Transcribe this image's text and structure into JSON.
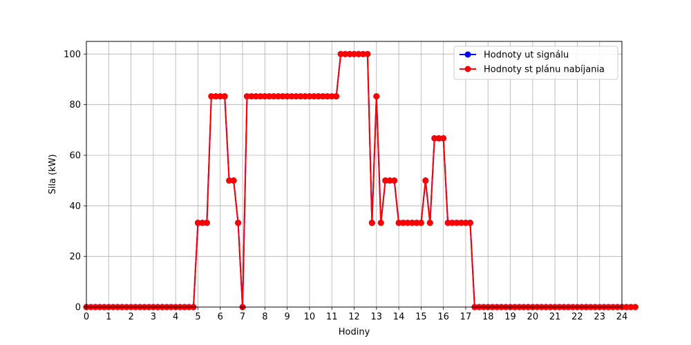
{
  "chart_data": {
    "type": "line",
    "title": "",
    "xlabel": "Hodiny",
    "ylabel": "Sila (kW)",
    "xlim": [
      0,
      24
    ],
    "ylim": [
      0,
      105
    ],
    "x_ticks": [
      0,
      1,
      2,
      3,
      4,
      5,
      6,
      7,
      8,
      9,
      10,
      11,
      12,
      13,
      14,
      15,
      16,
      17,
      18,
      19,
      20,
      21,
      22,
      23,
      24
    ],
    "y_ticks": [
      0,
      20,
      40,
      60,
      80,
      100
    ],
    "grid": true,
    "legend_position": "top-right",
    "x_step": 0.2,
    "series": [
      {
        "name": "Hodnoty ut signálu",
        "color": "#0000ff",
        "marker": "circle",
        "values": [
          0,
          0,
          0,
          0,
          0,
          0,
          0,
          0,
          0,
          0,
          0,
          0,
          0,
          0,
          0,
          0,
          0,
          0,
          0,
          0,
          0,
          0,
          0,
          0,
          0,
          33.3,
          33.3,
          33.3,
          83.3,
          83.3,
          83.3,
          83.3,
          50,
          50,
          33.3,
          0,
          83.3,
          83.3,
          83.3,
          83.3,
          83.3,
          83.3,
          83.3,
          83.3,
          83.3,
          83.3,
          83.3,
          83.3,
          83.3,
          83.3,
          83.3,
          83.3,
          83.3,
          83.3,
          83.3,
          83.3,
          83.3,
          100,
          100,
          100,
          100,
          100,
          100,
          100,
          33.3,
          83.3,
          33.3,
          50,
          50,
          50,
          33.3,
          33.3,
          33.3,
          33.3,
          33.3,
          33.3,
          50,
          33.3,
          66.7,
          66.7,
          66.7,
          33.3,
          33.3,
          33.3,
          33.3,
          33.3,
          33.3,
          0,
          0,
          0,
          0,
          0,
          0,
          0,
          0,
          0,
          0,
          0,
          0,
          0,
          0,
          0,
          0,
          0,
          0,
          0,
          0,
          0,
          0,
          0,
          0,
          0,
          0,
          0,
          0,
          0,
          0,
          0,
          0,
          0,
          0,
          0,
          0,
          0
        ]
      },
      {
        "name": "Hodnoty st plánu nabíjania",
        "color": "#ff0000",
        "marker": "circle",
        "values": [
          0,
          0,
          0,
          0,
          0,
          0,
          0,
          0,
          0,
          0,
          0,
          0,
          0,
          0,
          0,
          0,
          0,
          0,
          0,
          0,
          0,
          0,
          0,
          0,
          0,
          33.3,
          33.3,
          33.3,
          83.3,
          83.3,
          83.3,
          83.3,
          50,
          50,
          33.3,
          0,
          83.3,
          83.3,
          83.3,
          83.3,
          83.3,
          83.3,
          83.3,
          83.3,
          83.3,
          83.3,
          83.3,
          83.3,
          83.3,
          83.3,
          83.3,
          83.3,
          83.3,
          83.3,
          83.3,
          83.3,
          83.3,
          100,
          100,
          100,
          100,
          100,
          100,
          100,
          33.3,
          83.3,
          33.3,
          50,
          50,
          50,
          33.3,
          33.3,
          33.3,
          33.3,
          33.3,
          33.3,
          50,
          33.3,
          66.7,
          66.7,
          66.7,
          33.3,
          33.3,
          33.3,
          33.3,
          33.3,
          33.3,
          0,
          0,
          0,
          0,
          0,
          0,
          0,
          0,
          0,
          0,
          0,
          0,
          0,
          0,
          0,
          0,
          0,
          0,
          0,
          0,
          0,
          0,
          0,
          0,
          0,
          0,
          0,
          0,
          0,
          0,
          0,
          0,
          0,
          0,
          0,
          0,
          0
        ]
      }
    ]
  }
}
